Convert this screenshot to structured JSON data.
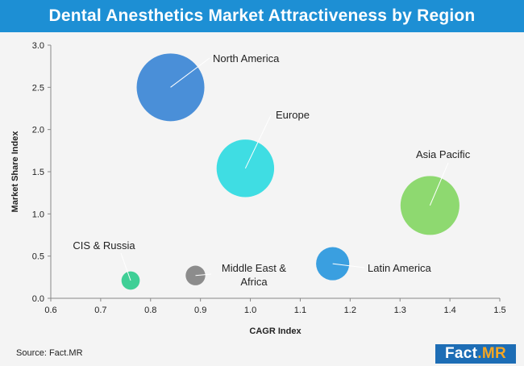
{
  "title": "Dental Anesthetics Market Attractiveness by Region",
  "source": "Source: Fact.MR",
  "logo": {
    "main": "Fact",
    "accent": ".MR"
  },
  "colors": {
    "header": "#1d8fd4",
    "logo": "#1d6db5",
    "logo_accent": "#f5a623"
  },
  "chart_data": {
    "type": "scatter",
    "xlabel": "CAGR Index",
    "ylabel": "Market Share Index",
    "xlim": [
      0.6,
      1.5
    ],
    "ylim": [
      0.0,
      3.0
    ],
    "x_ticks": [
      "0.6",
      "0.7",
      "0.8",
      "0.9",
      "1.0",
      "1.1",
      "1.2",
      "1.3",
      "1.4",
      "1.5"
    ],
    "y_ticks": [
      "0.0",
      "0.5",
      "1.0",
      "1.5",
      "2.0",
      "2.5",
      "3.0"
    ],
    "grid": false,
    "points": [
      {
        "label": "North America",
        "x": 0.84,
        "y": 2.5,
        "size": 1.0,
        "color": "#4a8fd8"
      },
      {
        "label": "Europe",
        "x": 0.99,
        "y": 1.54,
        "size": 0.85,
        "color": "#3fdde3"
      },
      {
        "label": "Asia Pacific",
        "x": 1.36,
        "y": 1.1,
        "size": 0.87,
        "color": "#8ed970"
      },
      {
        "label": "Latin America",
        "x": 1.165,
        "y": 0.41,
        "size": 0.49,
        "color": "#3a9fe0"
      },
      {
        "label": "Middle East & Africa",
        "x": 0.89,
        "y": 0.27,
        "size": 0.29,
        "color": "#8c8c8c"
      },
      {
        "label": "CIS & Russia",
        "x": 0.76,
        "y": 0.21,
        "size": 0.27,
        "color": "#3fcf96"
      }
    ]
  }
}
